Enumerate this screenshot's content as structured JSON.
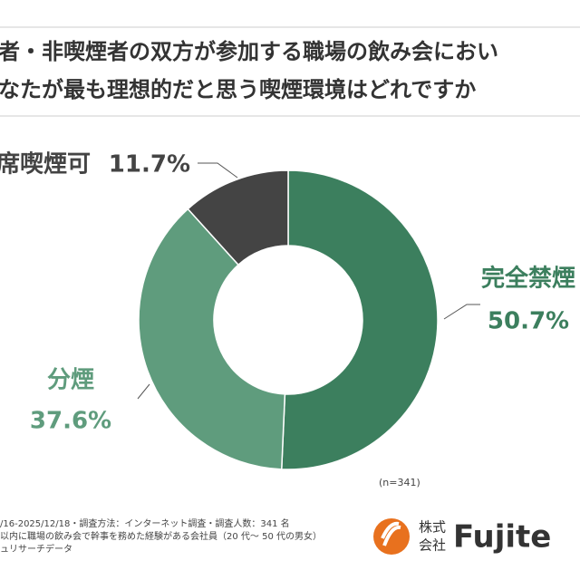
{
  "chart_data": {
    "type": "pie",
    "title_lines": [
      "者・非喫煙者の双方が参加する職場の飲み会におい",
      "なたが最も理想的だと思う喫煙環境はどれですか"
    ],
    "categories": [
      "完全禁煙",
      "分煙",
      "席喫煙可"
    ],
    "values": [
      50.7,
      37.6,
      11.7
    ],
    "value_labels": [
      "50.7%",
      "37.6%",
      "11.7%"
    ],
    "colors": [
      "#3c7f5e",
      "#5f9c7d",
      "#444444"
    ],
    "note": "(n=341)",
    "footnotes": [
      "/16-2025/12/18・調査方法：インターネット調査・調査人数：341 名",
      "以内に職場の飲み会で幹事を務めた経験がある会社員（20 代～ 50 代の男女）",
      "ュリサーチデータ"
    ],
    "logo": {
      "prefix_top": "株式",
      "prefix_bottom": "会社",
      "name": "Fujite"
    }
  }
}
